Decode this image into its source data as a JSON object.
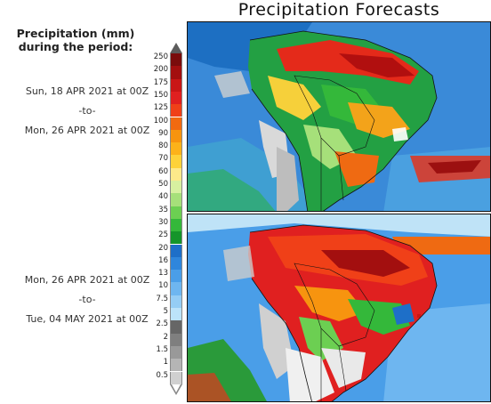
{
  "title": "Precipitation Forecasts",
  "legend": {
    "heading_line1": "Precipitation (mm)",
    "heading_line2": "during the period:",
    "levels": [
      "250",
      "200",
      "175",
      "150",
      "125",
      "100",
      "90",
      "80",
      "70",
      "60",
      "50",
      "40",
      "35",
      "30",
      "25",
      "20",
      "16",
      "13",
      "10",
      "7.5",
      "5",
      "2.5",
      "2",
      "1.5",
      "1",
      "0.5"
    ],
    "colors": [
      "#7a0c0c",
      "#a30f0f",
      "#c91616",
      "#e02020",
      "#f04018",
      "#f26a10",
      "#f7940f",
      "#fcb21a",
      "#fdd23a",
      "#fde98a",
      "#d7f0a0",
      "#a6e07a",
      "#6ccf52",
      "#34b83a",
      "#15952a",
      "#1e6fc8",
      "#2f86dc",
      "#4a9ee8",
      "#6eb6f0",
      "#95cdf5",
      "#bce3fa",
      "#666666",
      "#7f7f7f",
      "#999999",
      "#b5b5b5",
      "#d0d0d0"
    ],
    "top_arrow_color": "#5c5c5c",
    "bottom_arrow_color": "#ffffff"
  },
  "periods": [
    {
      "start": "Sun, 18 APR 2021 at 00Z",
      "separator": "-to-",
      "end": "Mon, 26 APR 2021 at 00Z"
    },
    {
      "start": "Mon, 26 APR 2021 at 00Z",
      "separator": "-to-",
      "end": "Tue, 04 MAY 2021 at 00Z"
    }
  ]
}
